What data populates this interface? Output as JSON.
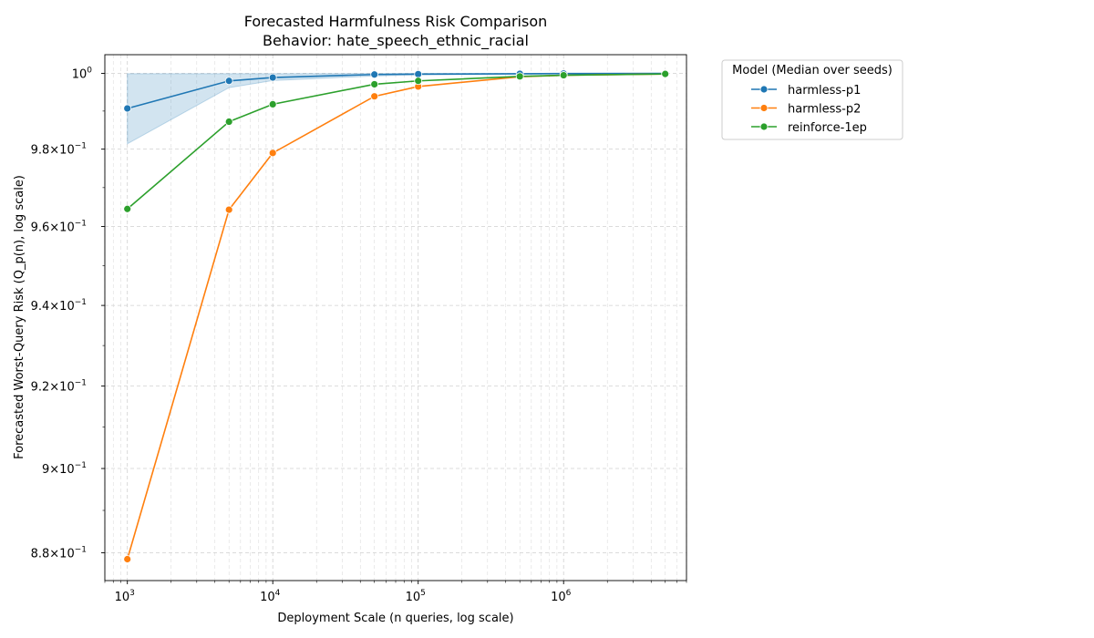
{
  "chart_data": {
    "type": "line",
    "title": "Forecasted Harmfulness Risk Comparison",
    "subtitle": "Behavior: hate_speech_ethnic_racial",
    "xlabel": "Deployment Scale (n queries, log scale)",
    "ylabel": "Forecasted Worst-Query Risk (Q_p(n), log scale)",
    "x_scale": "log",
    "y_scale": "log",
    "xlim": [
      700,
      7000000
    ],
    "ylim": [
      0.8735,
      1.005
    ],
    "x_ticks": [
      1000,
      10000,
      100000,
      1000000
    ],
    "x_tick_labels": [
      {
        "base": "10",
        "exp": "3"
      },
      {
        "base": "10",
        "exp": "4"
      },
      {
        "base": "10",
        "exp": "5"
      },
      {
        "base": "10",
        "exp": "6"
      }
    ],
    "y_ticks": [
      0.88,
      0.9,
      0.92,
      0.94,
      0.96,
      0.98,
      1.0
    ],
    "y_tick_labels": [
      {
        "mant": "8.8",
        "base": "10",
        "exp": "−1"
      },
      {
        "mant": "9",
        "base": "10",
        "exp": "−1"
      },
      {
        "mant": "9.2",
        "base": "10",
        "exp": "−1"
      },
      {
        "mant": "9.4",
        "base": "10",
        "exp": "−1"
      },
      {
        "mant": "9.6",
        "base": "10",
        "exp": "−1"
      },
      {
        "mant": "9.8",
        "base": "10",
        "exp": "−1"
      },
      {
        "mant": "10",
        "base": "0",
        "exp": "",
        "plain": "10⁰"
      }
    ],
    "grid": true,
    "legend_title": "Model (Median over seeds)",
    "legend_position": "outside-right-top",
    "series": [
      {
        "name": "harmless-p1",
        "color": "#1f77b4",
        "x": [
          1000,
          5000,
          10000,
          50000,
          100000,
          500000,
          1000000,
          5000000
        ],
        "y": [
          0.9907,
          0.998,
          0.9989,
          0.9997,
          0.9998,
          0.9999,
          0.99995,
          0.99998
        ],
        "band": {
          "x": [
            1000,
            5000,
            10000,
            50000,
            100000,
            500000,
            1000000,
            5000000
          ],
          "lower": [
            0.9814,
            0.9962,
            0.9981,
            0.9993,
            0.9996,
            0.9998,
            0.9999,
            0.99996
          ],
          "upper": [
            0.9999,
            0.9999,
            0.9999,
            0.99995,
            0.99997,
            0.99998,
            0.99999,
            0.99999
          ]
        }
      },
      {
        "name": "harmless-p2",
        "color": "#ff7f0e",
        "x": [
          1000,
          5000,
          10000,
          50000,
          100000,
          500000,
          1000000,
          5000000
        ],
        "y": [
          0.8785,
          0.9643,
          0.979,
          0.9939,
          0.9965,
          0.9991,
          0.9995,
          0.99985
        ]
      },
      {
        "name": "reinforce-1ep",
        "color": "#2ca02c",
        "x": [
          1000,
          5000,
          10000,
          50000,
          100000,
          500000,
          1000000,
          5000000
        ],
        "y": [
          0.9645,
          0.9872,
          0.9918,
          0.9971,
          0.998,
          0.9992,
          0.9995,
          0.99985
        ]
      }
    ]
  }
}
